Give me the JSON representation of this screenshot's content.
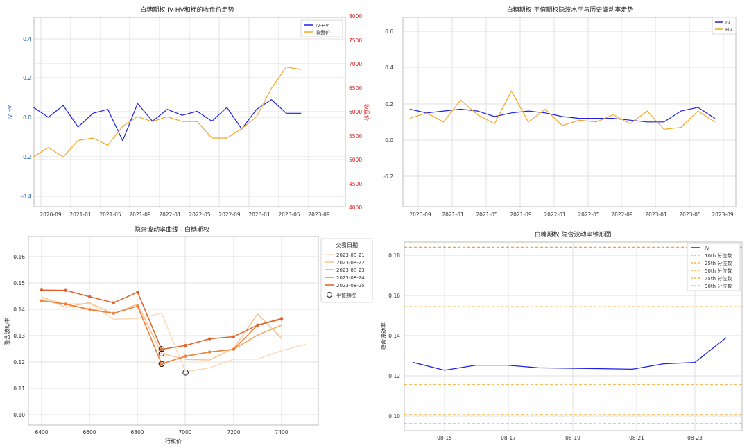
{
  "charts": {
    "c1": {
      "title": "白糖期权 IV-HV和标的收盘价走势",
      "ylabel_left": "IV-HV",
      "ylabel_right": "收盘价",
      "x_ticks": [
        "2020-09",
        "2021-01",
        "2021-05",
        "2021-09",
        "2022-01",
        "2022-05",
        "2022-09",
        "2023-01",
        "2023-05",
        "2023-09"
      ],
      "y_left_ticks": [
        "-0.4",
        "-0.2",
        "0.0",
        "0.2",
        "0.4"
      ],
      "y_right_ticks": [
        "4000",
        "4500",
        "5000",
        "5500",
        "6000",
        "6500",
        "7000",
        "7500",
        "8000"
      ],
      "legend": [
        "IV-HV",
        "收盘价"
      ]
    },
    "c2": {
      "title": "白糖期权 平值期权隐波水平与历史波动率走势",
      "x_ticks": [
        "2020-09",
        "2021-01",
        "2021-05",
        "2021-09",
        "2022-01",
        "2022-05",
        "2022-09",
        "2023-01",
        "2023-05",
        "2023-09"
      ],
      "y_ticks": [
        "-0.2",
        "0.0",
        "0.2",
        "0.4",
        "0.6"
      ],
      "legend": [
        "IV",
        "HV"
      ]
    },
    "c3": {
      "title": "隐含波动率曲线 - 白糖期权",
      "xlabel": "行权价",
      "ylabel": "隐含波动率",
      "x_ticks": [
        "6400",
        "6600",
        "6800",
        "7000",
        "7200",
        "7400"
      ],
      "y_ticks": [
        "0.10",
        "0.11",
        "0.12",
        "0.13",
        "0.14",
        "0.15",
        "0.16"
      ],
      "legend_title": "交易日期",
      "legend": [
        "2023-08-21",
        "2023-08-22",
        "2023-08-23",
        "2023-08-24",
        "2023-08-25",
        "平值期权"
      ]
    },
    "c4": {
      "title": "白糖期权 隐含波动率锥形图",
      "ylabel": "隐含波动率",
      "x_ticks": [
        "08-15",
        "08-17",
        "08-19",
        "08-21",
        "08-23"
      ],
      "y_ticks": [
        "0.10",
        "0.12",
        "0.14",
        "0.16",
        "0.18"
      ],
      "legend": [
        "IV",
        "10th 分位数",
        "25th 分位数",
        "50th 分位数",
        "75th 分位数",
        "90th 分位数"
      ]
    }
  },
  "chart_data": [
    {
      "type": "line",
      "title": "白糖期权 IV-HV和标的收盘价走势",
      "ylabel_left": "IV-HV",
      "ylabel_right": "收盘价",
      "x_range": [
        "2020-08",
        "2023-09"
      ],
      "ylim_left": [
        -0.46,
        0.52
      ],
      "ylim_right": [
        4000,
        8000
      ],
      "grid": true,
      "legend_position": "top-right",
      "series": [
        {
          "name": "IV-HV",
          "axis": "left",
          "color": "#1f1fe6",
          "x": [
            "2020-08",
            "2020-10",
            "2020-12",
            "2021-02",
            "2021-04",
            "2021-06",
            "2021-08",
            "2021-10",
            "2021-12",
            "2022-02",
            "2022-04",
            "2022-06",
            "2022-08",
            "2022-10",
            "2022-12",
            "2023-02",
            "2023-04",
            "2023-06",
            "2023-08"
          ],
          "y": [
            0.05,
            0.0,
            0.06,
            -0.05,
            0.02,
            0.04,
            -0.12,
            0.07,
            -0.02,
            0.04,
            0.01,
            0.03,
            -0.02,
            0.05,
            -0.06,
            0.04,
            0.09,
            0.02,
            0.02
          ]
        },
        {
          "name": "收盘价",
          "axis": "right",
          "color": "#f5a623",
          "x": [
            "2020-08",
            "2020-10",
            "2020-12",
            "2021-02",
            "2021-04",
            "2021-06",
            "2021-08",
            "2021-10",
            "2021-12",
            "2022-02",
            "2022-04",
            "2022-06",
            "2022-08",
            "2022-10",
            "2022-12",
            "2023-02",
            "2023-04",
            "2023-06",
            "2023-08"
          ],
          "y": [
            5050,
            5250,
            5050,
            5400,
            5450,
            5300,
            5700,
            5900,
            5800,
            5900,
            5800,
            5800,
            5450,
            5450,
            5650,
            5900,
            6500,
            6950,
            6900
          ]
        }
      ]
    },
    {
      "type": "line",
      "title": "白糖期权 平值期权隐波水平与历史波动率走势",
      "x_range": [
        "2020-08",
        "2023-09"
      ],
      "ylim": [
        -0.37,
        0.68
      ],
      "grid": true,
      "legend_position": "top-right",
      "series": [
        {
          "name": "IV",
          "color": "#1f1fe6",
          "x": [
            "2020-08",
            "2020-10",
            "2020-12",
            "2021-02",
            "2021-04",
            "2021-06",
            "2021-08",
            "2021-10",
            "2021-12",
            "2022-02",
            "2022-04",
            "2022-06",
            "2022-08",
            "2022-10",
            "2022-12",
            "2023-02",
            "2023-04",
            "2023-06",
            "2023-08"
          ],
          "y": [
            0.17,
            0.15,
            0.16,
            0.17,
            0.16,
            0.13,
            0.15,
            0.16,
            0.15,
            0.13,
            0.12,
            0.12,
            0.12,
            0.11,
            0.1,
            0.1,
            0.16,
            0.18,
            0.12
          ]
        },
        {
          "name": "HV",
          "color": "#f5a623",
          "x": [
            "2020-08",
            "2020-10",
            "2020-12",
            "2021-02",
            "2021-04",
            "2021-06",
            "2021-08",
            "2021-10",
            "2021-12",
            "2022-02",
            "2022-04",
            "2022-06",
            "2022-08",
            "2022-10",
            "2022-12",
            "2023-02",
            "2023-04",
            "2023-06",
            "2023-08"
          ],
          "y": [
            0.12,
            0.15,
            0.1,
            0.22,
            0.14,
            0.09,
            0.27,
            0.1,
            0.17,
            0.08,
            0.11,
            0.1,
            0.14,
            0.09,
            0.16,
            0.06,
            0.07,
            0.16,
            0.1
          ]
        }
      ]
    },
    {
      "type": "line",
      "title": "隐含波动率曲线 - 白糖期权",
      "xlabel": "行权价",
      "ylabel": "隐含波动率",
      "xlim": [
        6370,
        7560
      ],
      "ylim": [
        0.096,
        0.168
      ],
      "grid": true,
      "legend_title": "交易日期",
      "legend_position": "top-right",
      "series": [
        {
          "name": "2023-08-21",
          "color": "#fdd9b8",
          "x": [
            6400,
            6500,
            6600,
            6700,
            6800,
            6900,
            7000,
            7100,
            7200,
            7300,
            7400,
            7500
          ],
          "y": [
            0.1445,
            0.142,
            0.1422,
            0.1362,
            0.1365,
            0.1385,
            0.1163,
            0.1178,
            0.1211,
            0.1211,
            0.1243,
            0.1267
          ]
        },
        {
          "name": "2023-08-22",
          "color": "#fcc38a",
          "x": [
            6400,
            6500,
            6600,
            6700,
            6800,
            6900,
            7000,
            7100,
            7200,
            7300,
            7400
          ],
          "y": [
            0.1448,
            0.1408,
            0.1425,
            0.1383,
            0.142,
            0.1232,
            0.121,
            0.1208,
            0.1252,
            0.1382,
            0.129
          ]
        },
        {
          "name": "2023-08-23",
          "color": "#f9a25c",
          "x": [
            6400,
            6500,
            6600,
            6700,
            6800,
            6900,
            7000,
            7100,
            7200,
            7300,
            7400
          ],
          "y": [
            0.1433,
            0.142,
            0.1398,
            0.1385,
            0.1412,
            0.1193,
            0.1222,
            0.1238,
            0.1248,
            0.1302,
            0.134
          ]
        },
        {
          "name": "2023-08-24",
          "color": "#f07f3a",
          "x": [
            6400,
            6500,
            6600,
            6700,
            6800,
            6900,
            7000,
            7100,
            7200,
            7300,
            7400
          ],
          "y": [
            0.1433,
            0.142,
            0.14,
            0.1385,
            0.1412,
            0.1193,
            0.1222,
            0.1238,
            0.1248,
            0.134,
            0.1362
          ]
        },
        {
          "name": "2023-08-25",
          "color": "#e0612b",
          "x": [
            6400,
            6500,
            6600,
            6700,
            6800,
            6900,
            7000,
            7100,
            7200,
            7300,
            7400
          ],
          "y": [
            0.1473,
            0.1472,
            0.1448,
            0.1425,
            0.1465,
            0.1248,
            0.1263,
            0.1288,
            0.1296,
            0.134,
            0.1365
          ]
        }
      ],
      "atm_points": {
        "name": "平值期权",
        "x": [
          6900,
          6900,
          6900,
          6900,
          7000
        ],
        "y": [
          0.1249,
          0.1232,
          0.1193,
          0.1193,
          0.116
        ]
      }
    },
    {
      "type": "line",
      "title": "白糖期权 隐含波动率锥形图",
      "ylabel": "隐含波动率",
      "ylim": [
        0.092,
        0.187
      ],
      "grid": true,
      "legend_position": "top-right",
      "x": [
        "08-14",
        "08-15",
        "08-16",
        "08-17",
        "08-18",
        "08-19",
        "08-20",
        "08-21",
        "08-22",
        "08-23",
        "08-24"
      ],
      "series": [
        {
          "name": "IV",
          "color": "#1f1fe6",
          "values": [
            0.1267,
            0.1228,
            0.1253,
            0.1253,
            0.124,
            0.1238,
            0.1236,
            0.1233,
            0.126,
            0.1267,
            0.139
          ]
        }
      ],
      "quantiles": [
        {
          "name": "10th 分位数",
          "value": 0.0962
        },
        {
          "name": "25th 分位数",
          "value": 0.1007
        },
        {
          "name": "50th 分位数",
          "value": 0.1158
        },
        {
          "name": "75th 分位数",
          "value": 0.1544
        },
        {
          "name": "90th 分位数",
          "value": 0.184
        }
      ],
      "quantile_color": "#f5a623"
    }
  ]
}
